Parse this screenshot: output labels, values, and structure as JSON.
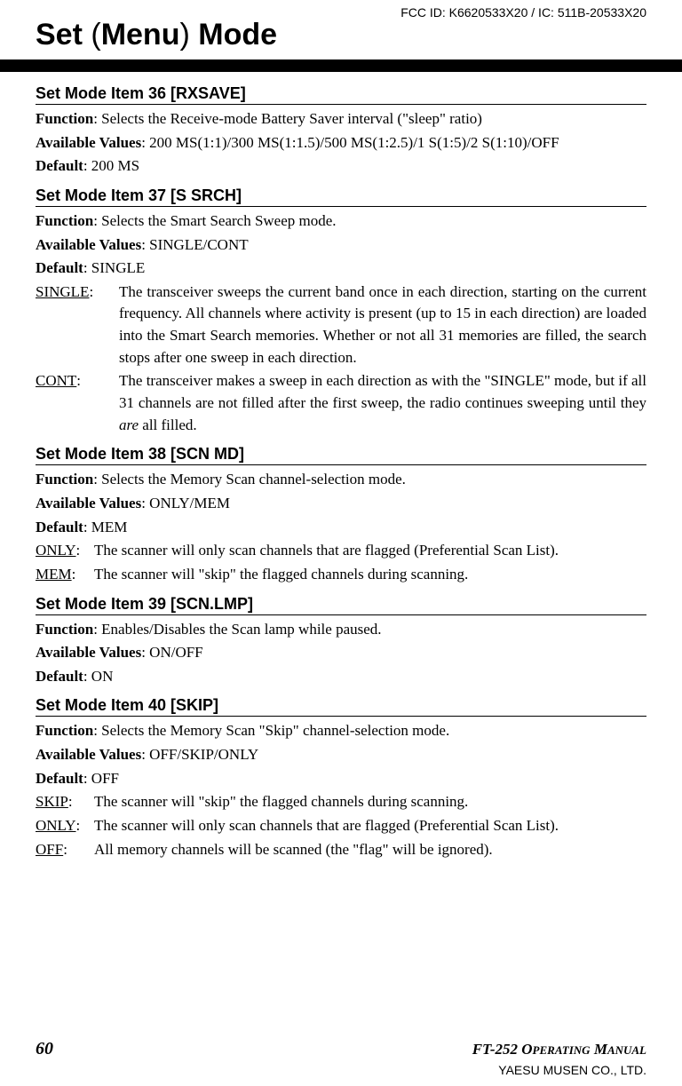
{
  "fcc": "FCC ID: K6620533X20 / IC: 511B-20533X20",
  "title_prefix": "Set ",
  "title_paren_open": "(",
  "title_menu": "Menu",
  "title_paren_close": ")",
  "title_suffix": " Mode",
  "sections": {
    "s36": {
      "header": "Set Mode Item 36 [RXSAVE]",
      "function": ": Selects the Receive-mode Battery Saver interval (\"sleep\" ratio)",
      "available": ": 200 MS(1:1)/300 MS(1:1.5)/500 MS(1:2.5)/1 S(1:5)/2 S(1:10)/OFF",
      "default": ": 200 MS"
    },
    "s37": {
      "header": "Set Mode Item 37 [S SRCH]",
      "function": ": Selects the Smart Search Sweep mode.",
      "available": ": SINGLE/CONT",
      "default": ": SINGLE",
      "single_term": "SINGLE",
      "single_desc": "The transceiver sweeps the current band once in each direction, starting on the current frequency. All channels where activity is present (up to 15 in each direction) are loaded into the Smart Search memories. Whether or not all 31 memories are filled, the search stops after one sweep in each direction.",
      "cont_term": "CONT",
      "cont_desc_a": "The transceiver makes a sweep in each direction as with the \"SINGLE\" mode, but if all 31 channels are not filled after the first sweep, the radio continues sweeping until they ",
      "cont_desc_em": "are",
      "cont_desc_b": " all filled."
    },
    "s38": {
      "header": "Set Mode Item 38 [SCN MD]",
      "function": ": Selects the Memory Scan channel-selection mode.",
      "available": ": ONLY/MEM",
      "default": ": MEM",
      "only_term": "ONLY",
      "only_desc": "The scanner will only scan channels that are flagged (Preferential Scan List).",
      "mem_term": "MEM",
      "mem_desc": "The scanner will \"skip\" the flagged channels during scanning."
    },
    "s39": {
      "header": "Set Mode Item 39 [SCN.LMP]",
      "function": ": Enables/Disables the Scan lamp while paused.",
      "available": ": ON/OFF",
      "default": ": ON"
    },
    "s40": {
      "header": "Set Mode Item 40 [SKIP]",
      "function": ": Selects the Memory Scan \"Skip\" channel-selection mode.",
      "available": ": OFF/SKIP/ONLY",
      "default": ": OFF",
      "skip_term": "SKIP",
      "skip_desc": "The scanner will \"skip\" the flagged channels during scanning.",
      "only_term": "ONLY",
      "only_desc": "The scanner will only scan channels that are flagged (Preferential Scan List).",
      "off_term": "OFF",
      "off_desc": "All memory channels will be scanned (the \"flag\" will be ignored)."
    }
  },
  "labels": {
    "function": "Function",
    "available": "Available Values",
    "default": "Default"
  },
  "footer": {
    "page": "60",
    "manual_a": "FT-252 O",
    "manual_b": "PERATING",
    "manual_c": " M",
    "manual_d": "ANUAL",
    "company": "YAESU MUSEN CO., LTD."
  }
}
